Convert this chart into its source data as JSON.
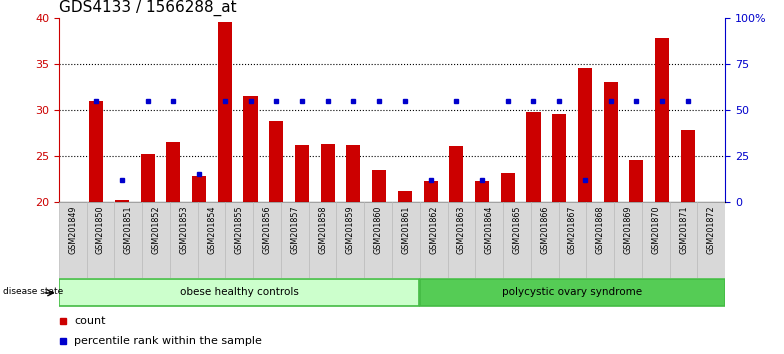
{
  "title": "GDS4133 / 1566288_at",
  "samples": [
    "GSM201849",
    "GSM201850",
    "GSM201851",
    "GSM201852",
    "GSM201853",
    "GSM201854",
    "GSM201855",
    "GSM201856",
    "GSM201857",
    "GSM201858",
    "GSM201859",
    "GSM201860",
    "GSM201861",
    "GSM201862",
    "GSM201863",
    "GSM201864",
    "GSM201865",
    "GSM201866",
    "GSM201867",
    "GSM201868",
    "GSM201869",
    "GSM201870",
    "GSM201871",
    "GSM201872"
  ],
  "count_values": [
    31.0,
    20.2,
    25.2,
    26.5,
    22.8,
    39.5,
    31.5,
    28.8,
    26.2,
    26.3,
    26.2,
    23.5,
    21.2,
    22.3,
    26.1,
    22.3,
    23.1,
    29.8,
    29.5,
    34.5,
    33.0,
    24.5,
    37.8,
    27.8
  ],
  "percentile_values": [
    55,
    12,
    55,
    55,
    15,
    55,
    55,
    55,
    55,
    55,
    55,
    55,
    55,
    12,
    55,
    12,
    55,
    55,
    55,
    12,
    55,
    55,
    55,
    55
  ],
  "ylim_left": [
    20,
    40
  ],
  "ylim_right": [
    0,
    100
  ],
  "group1_label": "obese healthy controls",
  "group1_count": 13,
  "group2_label": "polycystic ovary syndrome",
  "bar_color": "#cc0000",
  "percentile_color": "#0000cc",
  "group1_bg": "#ccffcc",
  "group2_bg": "#55cc55",
  "disease_state_label": "disease state",
  "legend_count_label": "count",
  "legend_percentile_label": "percentile rank within the sample",
  "baseline": 20,
  "bar_width": 0.55
}
